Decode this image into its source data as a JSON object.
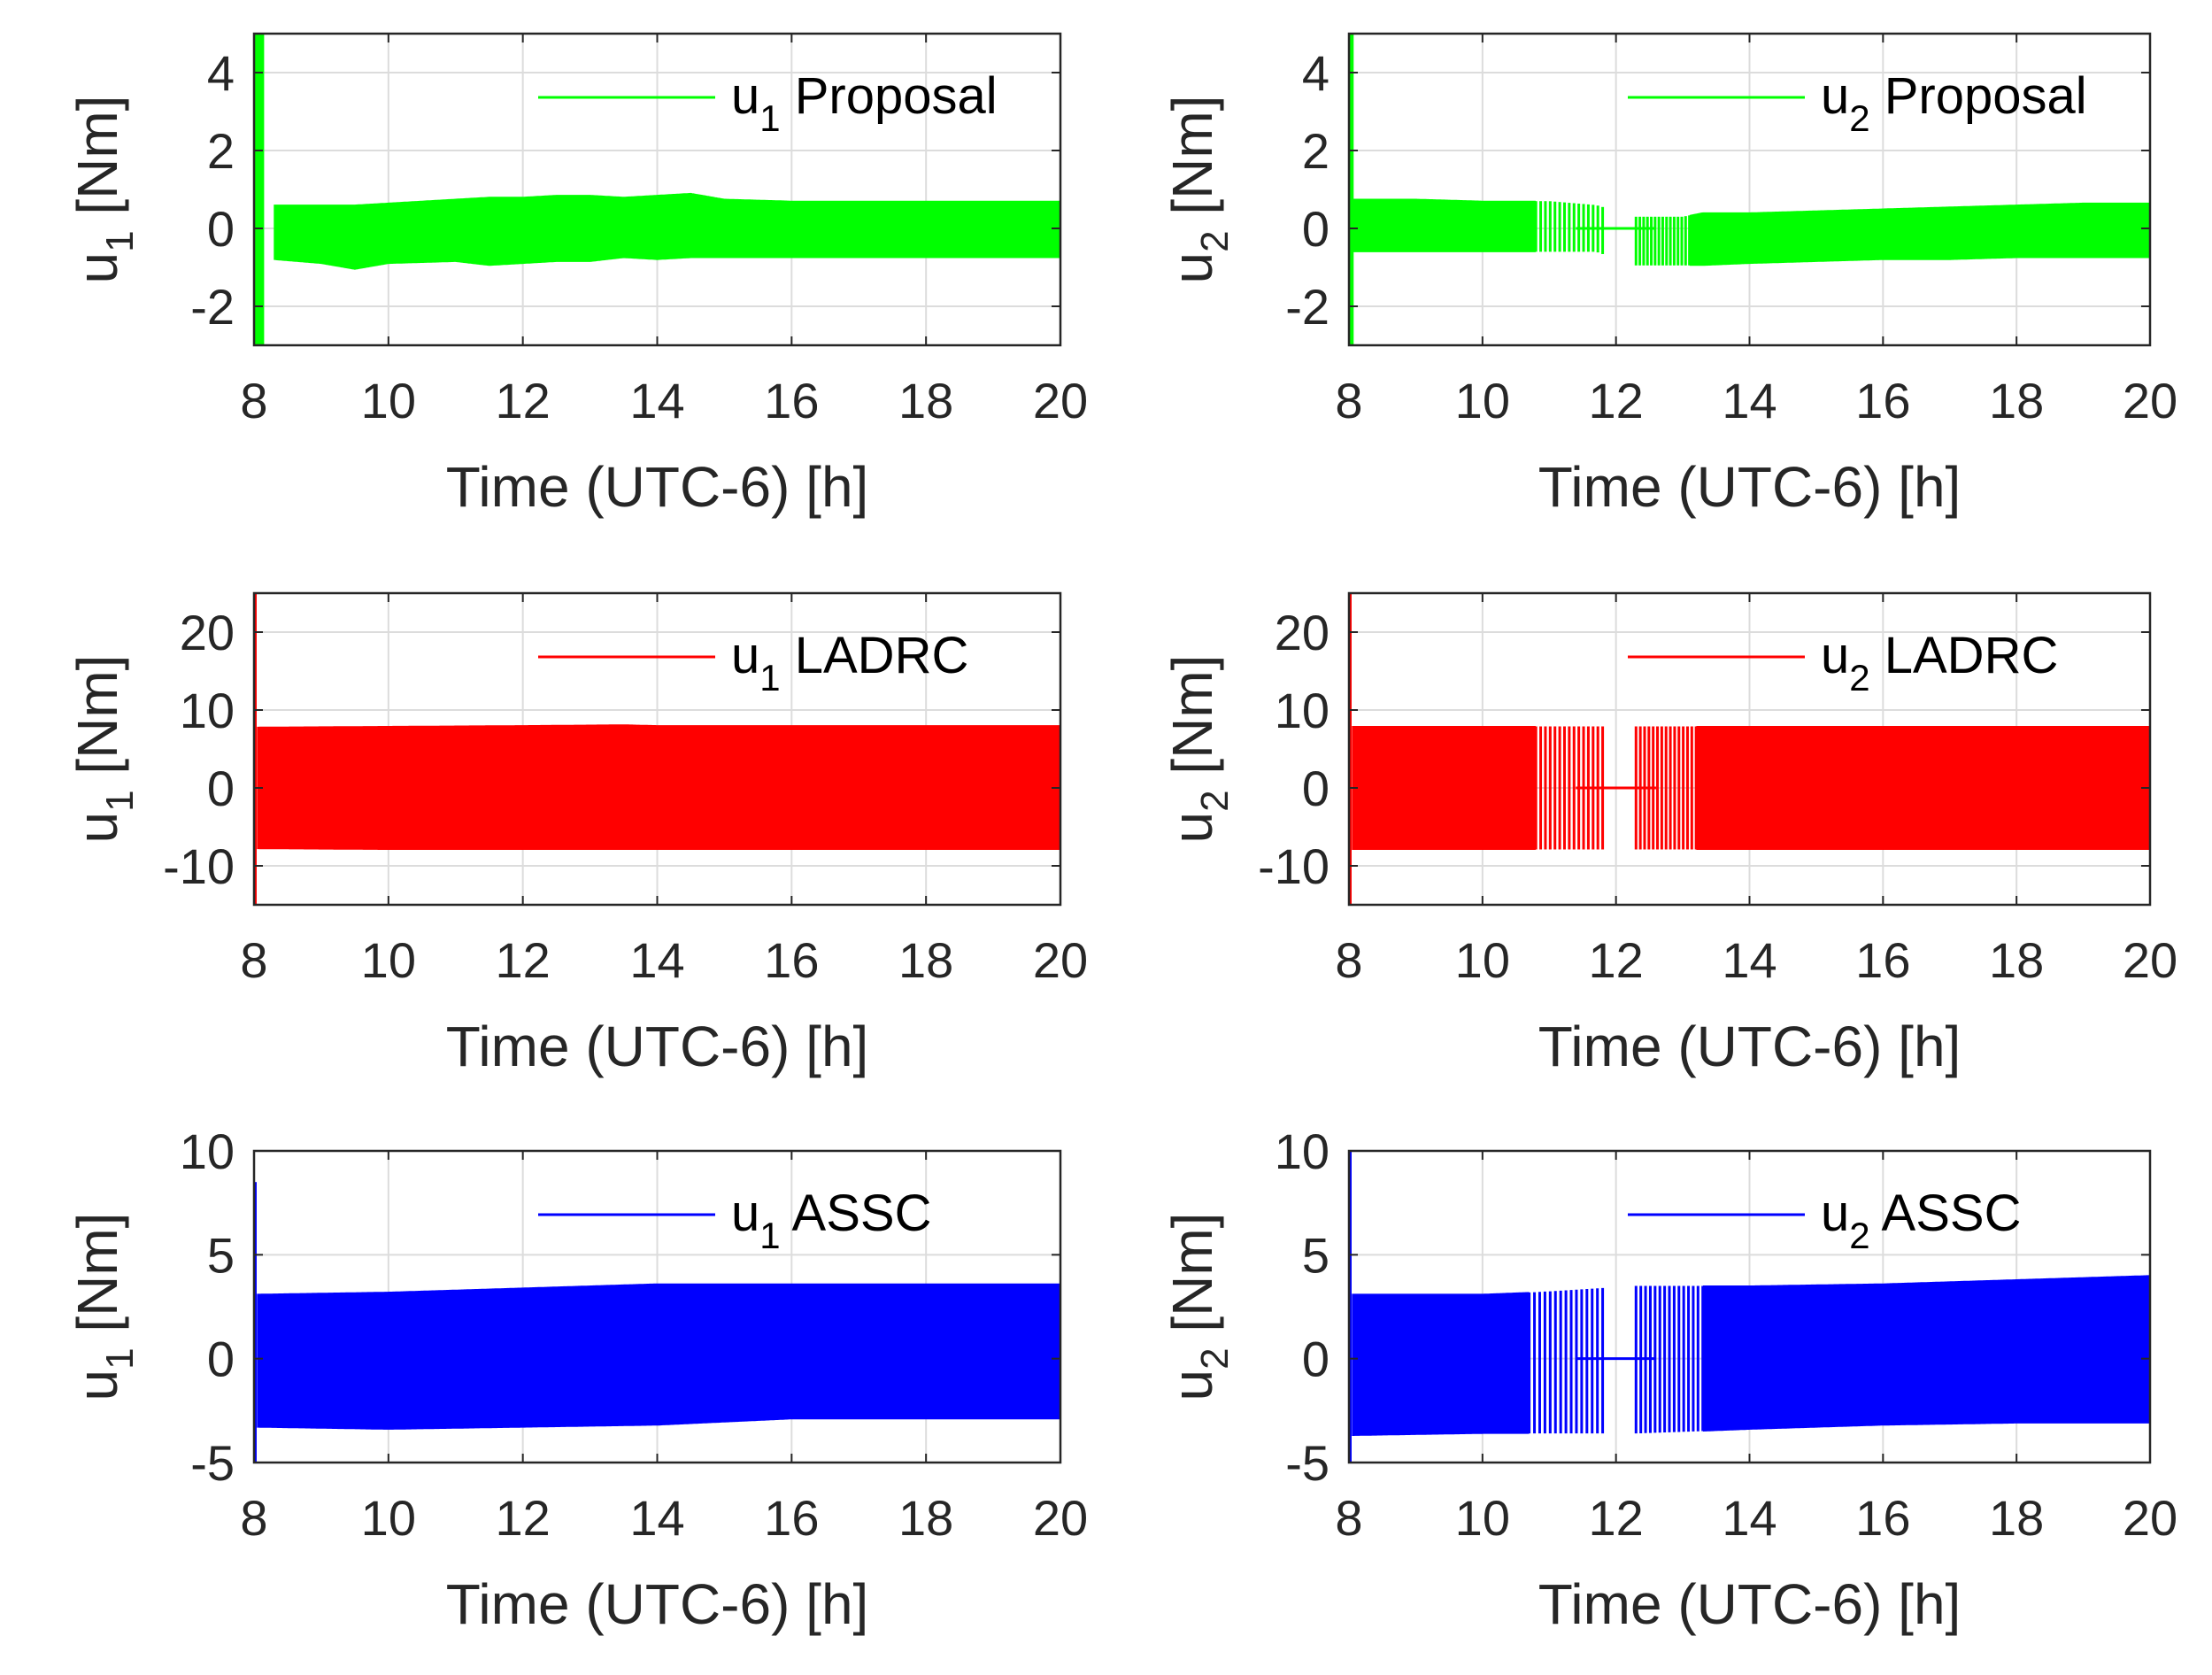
{
  "chart_data": [
    {
      "type": "line",
      "title": "",
      "xlabel": "Time (UTC-6) [h]",
      "ylabel": "u",
      "ylabel_subscript": "1",
      "ylabel_unit": " [Nm]",
      "xlim": [
        8,
        20
      ],
      "ylim": [
        -3,
        5
      ],
      "xticks": [
        "8",
        "10",
        "12",
        "14",
        "16",
        "18",
        "20"
      ],
      "yticks": [
        "-2",
        "0",
        "2",
        "4"
      ],
      "grid": true,
      "legend": {
        "label": "u",
        "subscript": "1",
        "text": " Proposal",
        "position": "top-right"
      },
      "series": [
        {
          "name": "u1 Proposal",
          "color": "#00ff00",
          "envelope": {
            "time": [
              8.3,
              9.0,
              9.5,
              10.0,
              11.0,
              11.5,
              12.0,
              12.5,
              13.0,
              13.5,
              14.0,
              14.5,
              15.0,
              16.0,
              17.0,
              18.0,
              19.0,
              20.0
            ],
            "upper": [
              0.6,
              0.6,
              0.6,
              0.65,
              0.75,
              0.8,
              0.8,
              0.85,
              0.85,
              0.8,
              0.85,
              0.9,
              0.75,
              0.7,
              0.7,
              0.7,
              0.7,
              0.7
            ],
            "lower": [
              -0.8,
              -0.9,
              -1.05,
              -0.9,
              -0.85,
              -0.95,
              -0.9,
              -0.85,
              -0.85,
              -0.75,
              -0.8,
              -0.75,
              -0.75,
              -0.75,
              -0.75,
              -0.75,
              -0.75,
              -0.75
            ]
          },
          "initial_transient": {
            "time": [
              8.0,
              8.15
            ],
            "min": -3,
            "max": 5
          }
        }
      ]
    },
    {
      "type": "line",
      "title": "",
      "xlabel": "Time (UTC-6) [h]",
      "ylabel": "u",
      "ylabel_subscript": "2",
      "ylabel_unit": " [Nm]",
      "xlim": [
        8,
        20
      ],
      "ylim": [
        -3,
        5
      ],
      "xticks": [
        "8",
        "10",
        "12",
        "14",
        "16",
        "18",
        "20"
      ],
      "yticks": [
        "-2",
        "0",
        "2",
        "4"
      ],
      "grid": true,
      "legend": {
        "label": "u",
        "subscript": "2",
        "text": " Proposal",
        "position": "top-right"
      },
      "series": [
        {
          "name": "u2 Proposal",
          "color": "#00ff00",
          "envelope": {
            "time": [
              8.05,
              9.0,
              10.0,
              10.8,
              11.0,
              11.7,
              12.3,
              13.0,
              13.3,
              14.0,
              15.0,
              16.0,
              17.0,
              18.0,
              19.0,
              20.0
            ],
            "upper": [
              0.75,
              0.75,
              0.7,
              0.7,
              0.7,
              0.6,
              0.3,
              0.3,
              0.4,
              0.4,
              0.45,
              0.5,
              0.55,
              0.6,
              0.65,
              0.65
            ],
            "lower": [
              -0.6,
              -0.6,
              -0.6,
              -0.6,
              -0.6,
              -0.6,
              -0.95,
              -0.95,
              -0.95,
              -0.9,
              -0.85,
              -0.8,
              -0.8,
              -0.75,
              -0.75,
              -0.75
            ]
          },
          "gap": [
            11.8,
            12.3
          ],
          "sparse_regions": [
            [
              10.8,
              11.8
            ],
            [
              12.3,
              13.1
            ]
          ],
          "initial_transient": {
            "time": [
              8.0,
              8.07
            ],
            "min": -3,
            "max": 5
          }
        }
      ]
    },
    {
      "type": "line",
      "title": "",
      "xlabel": "Time (UTC-6) [h]",
      "ylabel": "u",
      "ylabel_subscript": "1",
      "ylabel_unit": " [Nm]",
      "xlim": [
        8,
        20
      ],
      "ylim": [
        -15,
        25
      ],
      "xticks": [
        "8",
        "10",
        "12",
        "14",
        "16",
        "18",
        "20"
      ],
      "yticks": [
        "-10",
        "0",
        "10",
        "20"
      ],
      "grid": true,
      "legend": {
        "label": "u",
        "subscript": "1",
        "text": " LADRC",
        "position": "top-right"
      },
      "series": [
        {
          "name": "u1 LADRC",
          "color": "#ff0000",
          "envelope": {
            "time": [
              8.05,
              10.0,
              12.0,
              13.5,
              14.0,
              16.0,
              18.0,
              20.0
            ],
            "upper": [
              7.8,
              7.9,
              8.0,
              8.1,
              8.0,
              8.0,
              8.0,
              8.0
            ],
            "lower": [
              -7.8,
              -7.9,
              -7.9,
              -7.9,
              -7.9,
              -7.9,
              -7.9,
              -7.9
            ]
          },
          "initial_transient": {
            "time": [
              8.0,
              8.03
            ],
            "min": -15,
            "max": 25
          }
        }
      ]
    },
    {
      "type": "line",
      "title": "",
      "xlabel": "Time (UTC-6) [h]",
      "ylabel": "u",
      "ylabel_subscript": "2",
      "ylabel_unit": " [Nm]",
      "xlim": [
        8,
        20
      ],
      "ylim": [
        -15,
        25
      ],
      "xticks": [
        "8",
        "10",
        "12",
        "14",
        "16",
        "18",
        "20"
      ],
      "yticks": [
        "-10",
        "0",
        "10",
        "20"
      ],
      "grid": true,
      "legend": {
        "label": "u",
        "subscript": "2",
        "text": " LADRC",
        "position": "top-right"
      },
      "series": [
        {
          "name": "u2 LADRC",
          "color": "#ff0000",
          "envelope": {
            "time": [
              8.05,
              10.0,
              10.8,
              13.2,
              14.0,
              16.0,
              18.0,
              20.0
            ],
            "upper": [
              7.9,
              7.9,
              7.9,
              7.9,
              7.9,
              7.9,
              7.9,
              7.9
            ],
            "lower": [
              -7.9,
              -7.9,
              -7.9,
              -7.9,
              -7.9,
              -7.9,
              -7.9,
              -7.9
            ]
          },
          "gap": [
            11.8,
            12.3
          ],
          "sparse_regions": [
            [
              10.8,
              11.8
            ],
            [
              12.3,
              13.2
            ]
          ],
          "initial_transient": {
            "time": [
              8.0,
              8.03
            ],
            "min": -15,
            "max": 25
          }
        }
      ]
    },
    {
      "type": "line",
      "title": "",
      "xlabel": "Time (UTC-6) [h]",
      "ylabel": "u",
      "ylabel_subscript": "1",
      "ylabel_unit": " [Nm]",
      "xlim": [
        8,
        20
      ],
      "ylim": [
        -5,
        10
      ],
      "xticks": [
        "8",
        "10",
        "12",
        "14",
        "16",
        "18",
        "20"
      ],
      "yticks": [
        "-5",
        "0",
        "5",
        "10"
      ],
      "grid": true,
      "legend": {
        "label": "u",
        "subscript": "1",
        "text": " ASSC",
        "position": "top-right"
      },
      "series": [
        {
          "name": "u1 ASSC",
          "color": "#0000ff",
          "envelope": {
            "time": [
              8.05,
              10.0,
              12.0,
              14.0,
              16.0,
              18.0,
              20.0
            ],
            "upper": [
              3.1,
              3.2,
              3.4,
              3.6,
              3.6,
              3.6,
              3.6
            ],
            "lower": [
              -3.3,
              -3.4,
              -3.3,
              -3.2,
              -2.9,
              -2.9,
              -2.9
            ]
          },
          "initial_transient": {
            "time": [
              8.0,
              8.03
            ],
            "min": -5,
            "max": 8.5
          }
        }
      ]
    },
    {
      "type": "line",
      "title": "",
      "xlabel": "Time (UTC-6) [h]",
      "ylabel": "u",
      "ylabel_subscript": "2",
      "ylabel_unit": " [Nm]",
      "xlim": [
        8,
        20
      ],
      "ylim": [
        -5,
        10
      ],
      "xticks": [
        "8",
        "10",
        "12",
        "14",
        "16",
        "18",
        "20"
      ],
      "yticks": [
        "-5",
        "0",
        "5",
        "10"
      ],
      "grid": true,
      "legend": {
        "label": "u",
        "subscript": "2",
        "text": " ASSC",
        "position": "top-right"
      },
      "series": [
        {
          "name": "u2 ASSC",
          "color": "#0000ff",
          "envelope": {
            "time": [
              8.05,
              10.0,
              10.8,
              12.3,
              13.2,
              14.0,
              16.0,
              18.0,
              20.0
            ],
            "upper": [
              3.1,
              3.1,
              3.2,
              3.5,
              3.5,
              3.5,
              3.6,
              3.8,
              4.0
            ],
            "lower": [
              -3.7,
              -3.6,
              -3.6,
              -3.6,
              -3.5,
              -3.4,
              -3.2,
              -3.1,
              -3.1
            ]
          },
          "gap": [
            11.8,
            12.3
          ],
          "sparse_regions": [
            [
              10.7,
              11.8
            ],
            [
              12.3,
              13.3
            ]
          ],
          "initial_transient": {
            "time": [
              8.0,
              8.03
            ],
            "min": -5,
            "max": 10
          }
        }
      ]
    }
  ]
}
